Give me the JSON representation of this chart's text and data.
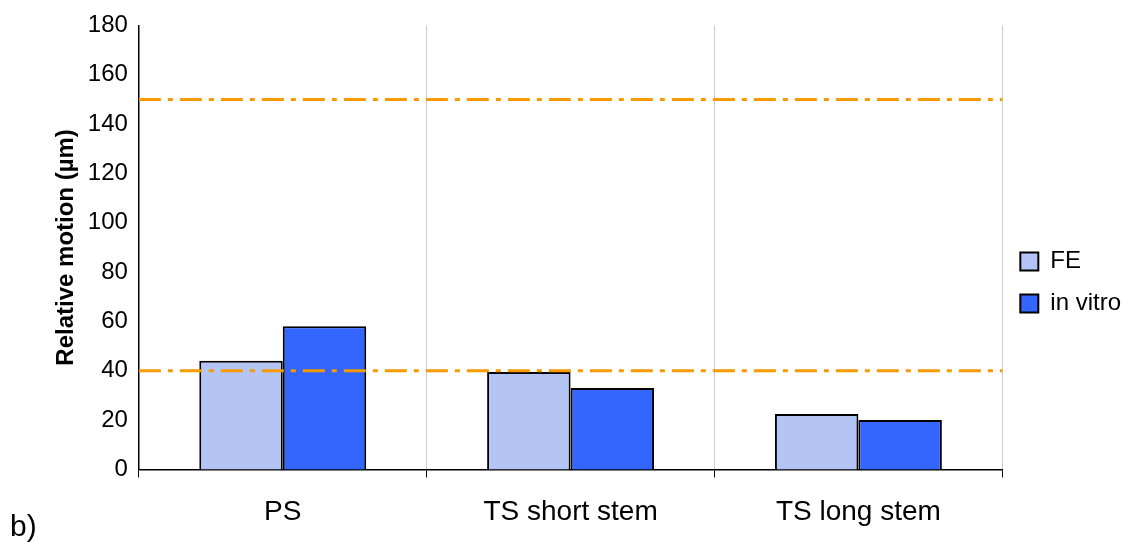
{
  "chart_data": {
    "type": "bar",
    "ylabel": "Relative motion (µm)",
    "categories": [
      "PS",
      "TS short stem",
      "TS long stem"
    ],
    "series": [
      {
        "name": "FE",
        "color": "#b4c4f4",
        "values": [
          44,
          39.5,
          22.5
        ]
      },
      {
        "name": "in vitro",
        "color": "#3366ff",
        "values": [
          58,
          33,
          20
        ]
      }
    ],
    "ylim": [
      0,
      180
    ],
    "yticks": [
      0,
      20,
      40,
      60,
      80,
      100,
      120,
      140,
      160,
      180
    ],
    "grid": "x",
    "legend": "right",
    "ref_lines": [
      {
        "axis": "y",
        "value": 150,
        "color": "#f59a00",
        "line_style": "dashed"
      },
      {
        "axis": "y",
        "value": 40,
        "color": "#f59a00",
        "line_style": "dashed"
      }
    ],
    "annotations": [
      "b)"
    ]
  }
}
